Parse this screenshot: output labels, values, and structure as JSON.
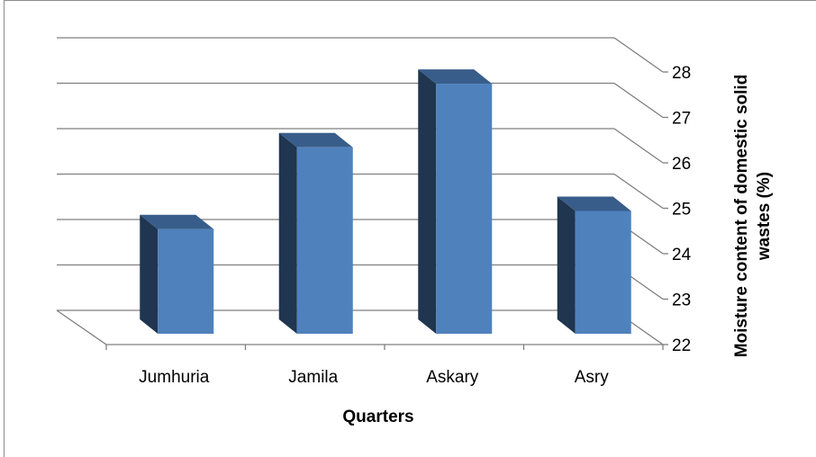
{
  "chart_data": {
    "type": "bar",
    "categories": [
      "Jumhuria",
      "Jamila",
      "Askary",
      "Asry"
    ],
    "values": [
      24.6,
      26.4,
      27.8,
      25.0
    ],
    "xlabel": "Quarters",
    "ylabel": "Moisture content of domestic solid wastes (%)",
    "ylabel_lines": [
      "Moisture content of domestic solid",
      "wastes (%)"
    ],
    "ylim": [
      22,
      28
    ],
    "yticks": [
      22,
      23,
      24,
      25,
      26,
      27,
      28
    ],
    "grid": true,
    "three_d": true,
    "colors": {
      "bar_front": "#4f81bd",
      "bar_top": "#385d8a",
      "bar_side": "#1f3550",
      "grid": "#7f7f7f"
    }
  }
}
